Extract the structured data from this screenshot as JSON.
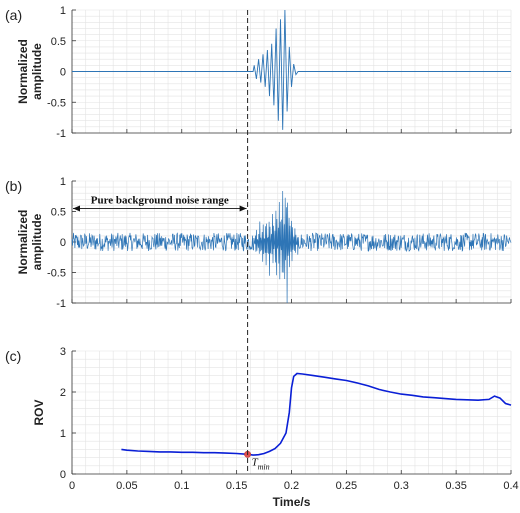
{
  "x_tick_labels": [
    "0",
    "0.05",
    "0.1",
    "0.15",
    "0.2",
    "0.25",
    "0.3",
    "0.35",
    "0.4"
  ],
  "xlabel": "Time/s",
  "colors": {
    "signal": "#2e75b6",
    "rov": "#0a1fd6",
    "marker": "#e05050",
    "grid": "#e3e3e3"
  },
  "chart_data": [
    {
      "panel": "(a)",
      "type": "line",
      "ylabel": [
        "Normalized",
        "amplitude"
      ],
      "xlim": [
        0,
        0.4
      ],
      "ylim": [
        -1,
        1
      ],
      "y_tick_labels": [
        "1",
        "0.5",
        "0",
        "-0.5",
        "-1"
      ],
      "grid": true,
      "x": [
        0,
        0.165,
        0.166,
        0.168,
        0.17,
        0.172,
        0.174,
        0.176,
        0.178,
        0.18,
        0.182,
        0.184,
        0.186,
        0.188,
        0.19,
        0.192,
        0.194,
        0.196,
        0.198,
        0.2,
        0.202,
        0.204,
        0.206,
        0.4
      ],
      "y": [
        0,
        0,
        0.1,
        -0.12,
        0.2,
        -0.18,
        0.28,
        -0.25,
        0.35,
        -0.4,
        0.45,
        -0.55,
        0.7,
        -0.8,
        0.85,
        -0.95,
        1.0,
        -0.65,
        0.4,
        -0.25,
        0.12,
        -0.05,
        0,
        0
      ]
    },
    {
      "panel": "(b)",
      "type": "line",
      "ylabel": [
        "Normalized",
        "amplitude"
      ],
      "xlim": [
        0,
        0.4
      ],
      "ylim": [
        -1,
        1
      ],
      "y_tick_labels": [
        "1",
        "0.5",
        "0",
        "-0.5",
        "-1"
      ],
      "grid": true,
      "noise_amplitude": 0.15,
      "burst": {
        "x": [
          0.165,
          0.168,
          0.171,
          0.174,
          0.177,
          0.18,
          0.183,
          0.186,
          0.189,
          0.192,
          0.194,
          0.196,
          0.198,
          0.2,
          0.203,
          0.206
        ],
        "y": [
          0.15,
          -0.2,
          0.3,
          -0.35,
          0.4,
          -0.45,
          0.5,
          -0.6,
          0.7,
          -0.85,
          1.0,
          -0.9,
          0.6,
          -0.4,
          0.25,
          -0.2
        ]
      },
      "annotation": {
        "text": "Pure background noise range",
        "x_range": [
          0,
          0.16
        ]
      }
    },
    {
      "panel": "(c)",
      "type": "line",
      "ylabel": [
        "ROV"
      ],
      "xlabel": "Time/s",
      "xlim": [
        0,
        0.4
      ],
      "ylim": [
        0,
        3
      ],
      "y_tick_labels": [
        "3",
        "2",
        "1",
        "0"
      ],
      "grid": true,
      "series": [
        {
          "x": [
            0.045,
            0.05,
            0.06,
            0.07,
            0.08,
            0.09,
            0.1,
            0.11,
            0.12,
            0.13,
            0.14,
            0.15,
            0.16,
            0.165,
            0.17,
            0.175,
            0.18,
            0.185,
            0.19,
            0.195,
            0.198,
            0.2,
            0.202,
            0.205,
            0.21,
            0.22,
            0.23,
            0.24,
            0.25,
            0.26,
            0.27,
            0.28,
            0.29,
            0.3,
            0.31,
            0.32,
            0.33,
            0.34,
            0.35,
            0.36,
            0.37,
            0.38,
            0.385,
            0.39,
            0.395,
            0.4
          ],
          "y": [
            0.6,
            0.58,
            0.56,
            0.55,
            0.54,
            0.54,
            0.53,
            0.53,
            0.52,
            0.52,
            0.51,
            0.5,
            0.48,
            0.46,
            0.47,
            0.5,
            0.55,
            0.62,
            0.75,
            1.0,
            1.5,
            2.1,
            2.38,
            2.45,
            2.44,
            2.4,
            2.36,
            2.32,
            2.28,
            2.22,
            2.15,
            2.06,
            2.0,
            1.95,
            1.92,
            1.88,
            1.86,
            1.84,
            1.82,
            1.81,
            1.8,
            1.82,
            1.9,
            1.85,
            1.72,
            1.68
          ]
        }
      ],
      "marker": {
        "x": 0.16,
        "y": 0.48,
        "label": "T",
        "label_sub": "min"
      }
    }
  ],
  "vline_x": 0.16
}
